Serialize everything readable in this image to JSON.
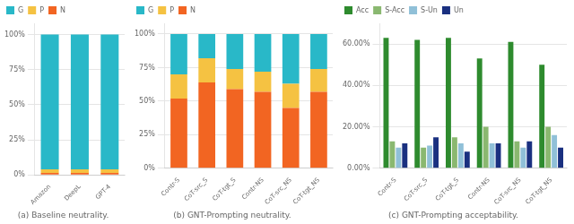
{
  "chart_data": [
    {
      "type": "bar",
      "title": "(a) Baseline neutrality.",
      "stacked": true,
      "categories": [
        "Amazon",
        "DeepL",
        "GPT-4"
      ],
      "series": [
        {
          "name": "N",
          "color": "#f26522",
          "values": [
            1.5,
            1.5,
            1.5
          ]
        },
        {
          "name": "P",
          "color": "#f5c242",
          "values": [
            2.5,
            2.5,
            2.5
          ]
        },
        {
          "name": "G",
          "color": "#29b8c8",
          "values": [
            96,
            96,
            96
          ]
        }
      ],
      "ylim": [
        0,
        108
      ],
      "yticks": [
        {
          "value": 0,
          "label": "0%"
        },
        {
          "value": 25,
          "label": "25%"
        },
        {
          "value": 50,
          "label": "50%"
        },
        {
          "value": 75,
          "label": "75%"
        },
        {
          "value": 100,
          "label": "100%"
        }
      ],
      "grid": true,
      "legend": "upper left"
    },
    {
      "type": "bar",
      "title": "(b) GNT-Prompting neutrality.",
      "stacked": true,
      "categories": [
        "Contr-S",
        "CoT-src_S",
        "CoT-tgt_S",
        "Contr-NS",
        "CoT-src_NS",
        "CoT-tgt_NS"
      ],
      "series": [
        {
          "name": "N",
          "color": "#f26522",
          "values": [
            52,
            64,
            59,
            57,
            45,
            57
          ]
        },
        {
          "name": "P",
          "color": "#f5c242",
          "values": [
            18,
            18,
            15,
            15,
            18,
            17
          ]
        },
        {
          "name": "G",
          "color": "#29b8c8",
          "values": [
            30,
            18,
            26,
            28,
            37,
            26
          ]
        }
      ],
      "ylim": [
        0,
        108
      ],
      "yticks": [
        {
          "value": 0,
          "label": "0%"
        },
        {
          "value": 25,
          "label": "25%"
        },
        {
          "value": 50,
          "label": "50%"
        },
        {
          "value": 75,
          "label": "75%"
        },
        {
          "value": 100,
          "label": "100%"
        }
      ],
      "grid": true,
      "legend": "upper left"
    },
    {
      "type": "bar",
      "title": "(c) GNT-Prompting acceptability.",
      "categories": [
        "Contr-S",
        "CoT-src_S",
        "CoT-tgt_S",
        "Contr-NS",
        "CoT-src_NS",
        "CoT-tgt_NS"
      ],
      "series": [
        {
          "name": "Acc",
          "color": "#2e8b2e",
          "values": [
            63,
            62,
            63,
            53,
            61,
            50
          ]
        },
        {
          "name": "S-Acc",
          "color": "#8ab870",
          "values": [
            13,
            10,
            15,
            20,
            13,
            20
          ]
        },
        {
          "name": "S-Un",
          "color": "#90c0d8",
          "values": [
            10,
            11,
            12,
            12,
            10,
            16
          ]
        },
        {
          "name": "Un",
          "color": "#1a3080",
          "values": [
            12,
            15,
            8,
            12,
            13,
            10
          ]
        }
      ],
      "ylim": [
        0,
        70
      ],
      "yticks": [
        {
          "value": 0,
          "label": "0.00%"
        },
        {
          "value": 20,
          "label": "20.00%"
        },
        {
          "value": 40,
          "label": "40.00%"
        },
        {
          "value": 60,
          "label": "60.00%"
        }
      ],
      "grid": true,
      "legend": "upper left"
    }
  ]
}
